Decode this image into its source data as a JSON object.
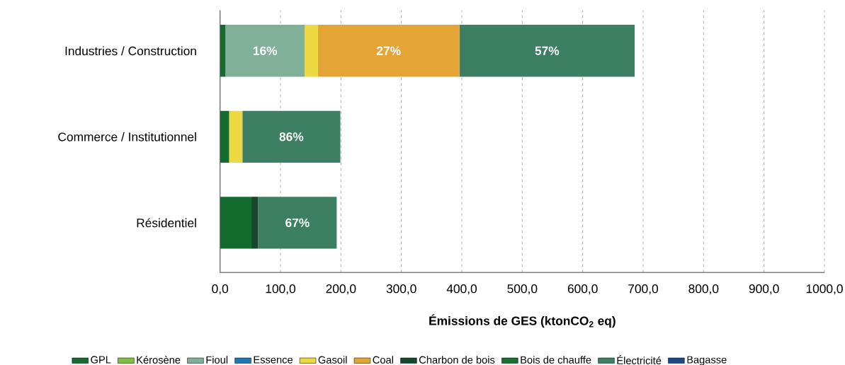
{
  "chart_data": {
    "type": "bar",
    "orientation": "horizontal",
    "stacked": true,
    "categories": [
      "Industries / Construction",
      "Commerce / Institutionnel",
      "Résidentiel"
    ],
    "xlabel": "Émissions de GES (ktonCO$_{2}$ eq)",
    "xlim": [
      0,
      1000
    ],
    "xticks": [
      {
        "value": 0,
        "label": "0,0"
      },
      {
        "value": 100,
        "label": "100,0"
      },
      {
        "value": 200,
        "label": "200,0"
      },
      {
        "value": 300,
        "label": "300,0"
      },
      {
        "value": 400,
        "label": "400,0"
      },
      {
        "value": 500,
        "label": "500,0"
      },
      {
        "value": 600,
        "label": "600,0"
      },
      {
        "value": 700,
        "label": "700,0"
      },
      {
        "value": 800,
        "label": "800,0"
      },
      {
        "value": 900,
        "label": "900,0"
      },
      {
        "value": 1000,
        "label": "1000,0"
      }
    ],
    "grid": "x",
    "legend": "bottom",
    "annotations": [
      "16%",
      "27%",
      "57%",
      "86%",
      "67%"
    ],
    "series": [
      {
        "name": "GPL",
        "color": "#146b2e",
        "values": [
          9,
          15,
          52
        ]
      },
      {
        "name": "Kérosène",
        "color": "#7dc142",
        "values": [
          0,
          0,
          0
        ]
      },
      {
        "name": "Fioul",
        "color": "#80b097",
        "values": [
          131,
          0,
          0
        ]
      },
      {
        "name": "Essence",
        "color": "#2077b4",
        "values": [
          0,
          0,
          0
        ]
      },
      {
        "name": "Gasoil",
        "color": "#ecd941",
        "values": [
          22,
          22,
          0
        ]
      },
      {
        "name": "Coal",
        "color": "#e5a536",
        "values": [
          234,
          0,
          0
        ]
      },
      {
        "name": "Charbon de bois",
        "color": "#17472a",
        "values": [
          0,
          0,
          11
        ]
      },
      {
        "name": "Bois de chauffe",
        "color": "#16702f",
        "values": [
          0,
          0,
          0
        ]
      },
      {
        "name": "Électricité",
        "color": "#3c7f62",
        "values": [
          290,
          162,
          130
        ]
      },
      {
        "name": "Bagasse",
        "color": "#1b4b82",
        "values": [
          0,
          0,
          0
        ]
      }
    ]
  }
}
